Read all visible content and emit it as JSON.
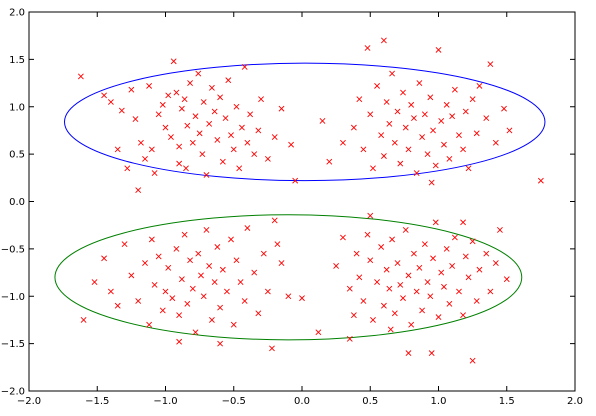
{
  "chart_data": {
    "type": "scatter",
    "title": "",
    "xlabel": "",
    "ylabel": "",
    "xlim": [
      -2.0,
      2.0
    ],
    "ylim": [
      -2.0,
      2.0
    ],
    "grid": false,
    "legend": "none",
    "x_ticks": [
      "−2.0",
      "−1.5",
      "−1.0",
      "−0.5",
      "0.0",
      "0.5",
      "1.0",
      "1.5",
      "2.0"
    ],
    "y_ticks": [
      "2.0",
      "1.5",
      "1.0",
      "0.5",
      "0.0",
      "−0.5",
      "−1.0",
      "−1.5",
      "−2.0"
    ],
    "ellipses": [
      {
        "cx": 0.02,
        "cy": 0.84,
        "rx": 1.76,
        "ry": 0.62,
        "color": "#0000ff"
      },
      {
        "cx": -0.1,
        "cy": -0.8,
        "rx": 1.71,
        "ry": 0.66,
        "color": "#008000"
      }
    ],
    "series": [
      {
        "marker": "x",
        "color": "#ff0000",
        "points": [
          [
            -1.62,
            1.32
          ],
          [
            -1.45,
            1.12
          ],
          [
            -1.4,
            1.05
          ],
          [
            -1.32,
            0.96
          ],
          [
            -1.25,
            1.18
          ],
          [
            -1.22,
            0.87
          ],
          [
            -1.18,
            0.62
          ],
          [
            -1.15,
            0.45
          ],
          [
            -1.12,
            1.22
          ],
          [
            -1.1,
            0.55
          ],
          [
            -1.08,
            0.3
          ],
          [
            -1.05,
            0.92
          ],
          [
            -1.02,
            1.02
          ],
          [
            -1.0,
            0.78
          ],
          [
            -0.98,
            1.12
          ],
          [
            -0.96,
            0.68
          ],
          [
            -0.94,
            1.48
          ],
          [
            -0.92,
            1.15
          ],
          [
            -0.9,
            0.58
          ],
          [
            -0.88,
            0.98
          ],
          [
            -0.86,
            1.08
          ],
          [
            -0.85,
            0.35
          ],
          [
            -0.84,
            0.8
          ],
          [
            -0.82,
            1.25
          ],
          [
            -0.8,
            0.62
          ],
          [
            -0.78,
            0.9
          ],
          [
            -0.76,
            1.35
          ],
          [
            -0.75,
            0.72
          ],
          [
            -0.73,
            0.5
          ],
          [
            -0.72,
            1.05
          ],
          [
            -0.7,
            0.28
          ],
          [
            -0.68,
            0.82
          ],
          [
            -0.66,
            1.2
          ],
          [
            -0.64,
            0.95
          ],
          [
            -0.62,
            0.65
          ],
          [
            -0.6,
            1.1
          ],
          [
            -0.58,
            0.42
          ],
          [
            -0.56,
            0.88
          ],
          [
            -0.54,
            1.28
          ],
          [
            -0.52,
            0.7
          ],
          [
            -0.5,
            0.55
          ],
          [
            -0.48,
            1.0
          ],
          [
            -0.46,
            0.35
          ],
          [
            -0.44,
            0.78
          ],
          [
            -0.42,
            1.42
          ],
          [
            -0.4,
            0.62
          ],
          [
            -0.38,
            0.92
          ],
          [
            -0.35,
            0.5
          ],
          [
            -0.32,
            0.75
          ],
          [
            -0.3,
            1.08
          ],
          [
            -0.25,
            0.45
          ],
          [
            -0.2,
            0.68
          ],
          [
            -0.15,
            0.98
          ],
          [
            -0.08,
            0.6
          ],
          [
            -0.05,
            0.22
          ],
          [
            0.15,
            0.85
          ],
          [
            0.2,
            0.42
          ],
          [
            0.3,
            0.62
          ],
          [
            0.38,
            0.78
          ],
          [
            0.42,
            1.08
          ],
          [
            0.45,
            0.55
          ],
          [
            0.48,
            1.62
          ],
          [
            0.5,
            0.92
          ],
          [
            0.52,
            0.35
          ],
          [
            0.55,
            1.22
          ],
          [
            0.58,
            0.7
          ],
          [
            0.6,
            0.48
          ],
          [
            0.62,
            1.05
          ],
          [
            0.64,
            0.82
          ],
          [
            0.66,
            1.35
          ],
          [
            0.68,
            0.62
          ],
          [
            0.7,
            0.95
          ],
          [
            0.72,
            0.4
          ],
          [
            0.74,
            1.15
          ],
          [
            0.76,
            0.78
          ],
          [
            0.78,
            0.55
          ],
          [
            0.8,
            1.02
          ],
          [
            0.82,
            0.88
          ],
          [
            0.84,
            0.3
          ],
          [
            0.86,
            1.25
          ],
          [
            0.88,
            0.68
          ],
          [
            0.9,
            0.92
          ],
          [
            0.92,
            0.5
          ],
          [
            0.94,
            1.1
          ],
          [
            0.96,
            0.75
          ],
          [
            0.98,
            0.38
          ],
          [
            1.0,
            1.6
          ],
          [
            1.02,
            0.85
          ],
          [
            1.04,
            0.6
          ],
          [
            1.06,
            1.02
          ],
          [
            1.08,
            0.45
          ],
          [
            1.1,
            0.9
          ],
          [
            1.12,
            1.18
          ],
          [
            1.15,
            0.7
          ],
          [
            1.18,
            0.55
          ],
          [
            1.2,
            0.95
          ],
          [
            1.22,
            0.35
          ],
          [
            1.25,
            1.08
          ],
          [
            1.28,
            0.72
          ],
          [
            1.3,
            1.22
          ],
          [
            1.35,
            0.88
          ],
          [
            1.38,
            1.45
          ],
          [
            1.42,
            0.62
          ],
          [
            1.48,
            0.98
          ],
          [
            1.52,
            0.75
          ],
          [
            1.75,
            0.22
          ],
          [
            -1.35,
            0.55
          ],
          [
            -1.28,
            0.35
          ],
          [
            -1.2,
            0.12
          ],
          [
            -0.9,
            0.4
          ],
          [
            0.6,
            1.7
          ],
          [
            0.95,
            0.2
          ],
          [
            -1.6,
            -1.25
          ],
          [
            -1.52,
            -0.85
          ],
          [
            -1.45,
            -0.6
          ],
          [
            -1.4,
            -0.95
          ],
          [
            -1.35,
            -1.1
          ],
          [
            -1.3,
            -0.45
          ],
          [
            -1.25,
            -0.78
          ],
          [
            -1.2,
            -1.05
          ],
          [
            -1.15,
            -0.65
          ],
          [
            -1.12,
            -1.3
          ],
          [
            -1.1,
            -0.4
          ],
          [
            -1.08,
            -0.88
          ],
          [
            -1.05,
            -0.58
          ],
          [
            -1.02,
            -1.15
          ],
          [
            -1.0,
            -0.95
          ],
          [
            -0.98,
            -0.7
          ],
          [
            -0.95,
            -1.02
          ],
          [
            -0.92,
            -0.5
          ],
          [
            -0.9,
            -1.2
          ],
          [
            -0.88,
            -0.82
          ],
          [
            -0.86,
            -0.35
          ],
          [
            -0.84,
            -1.08
          ],
          [
            -0.82,
            -0.62
          ],
          [
            -0.8,
            -0.92
          ],
          [
            -0.78,
            -1.38
          ],
          [
            -0.76,
            -0.55
          ],
          [
            -0.74,
            -0.78
          ],
          [
            -0.72,
            -1.0
          ],
          [
            -0.7,
            -0.3
          ],
          [
            -0.68,
            -0.68
          ],
          [
            -0.66,
            -1.25
          ],
          [
            -0.64,
            -0.85
          ],
          [
            -0.62,
            -0.48
          ],
          [
            -0.6,
            -1.12
          ],
          [
            -0.58,
            -0.72
          ],
          [
            -0.55,
            -0.95
          ],
          [
            -0.52,
            -0.4
          ],
          [
            -0.5,
            -1.3
          ],
          [
            -0.48,
            -0.62
          ],
          [
            -0.45,
            -0.85
          ],
          [
            -0.42,
            -1.05
          ],
          [
            -0.4,
            -0.28
          ],
          [
            -0.35,
            -0.75
          ],
          [
            -0.32,
            -1.18
          ],
          [
            -0.28,
            -0.55
          ],
          [
            -0.25,
            -0.95
          ],
          [
            -0.22,
            -1.55
          ],
          [
            -0.2,
            -0.2
          ],
          [
            -0.18,
            -0.45
          ],
          [
            -0.15,
            -0.65
          ],
          [
            -0.1,
            -1.0
          ],
          [
            0.0,
            -1.02
          ],
          [
            0.12,
            -1.38
          ],
          [
            0.25,
            -0.68
          ],
          [
            0.3,
            -0.38
          ],
          [
            0.35,
            -0.92
          ],
          [
            0.38,
            -1.2
          ],
          [
            0.4,
            -0.55
          ],
          [
            0.42,
            -0.8
          ],
          [
            0.45,
            -1.05
          ],
          [
            0.48,
            -0.35
          ],
          [
            0.5,
            -0.62
          ],
          [
            0.52,
            -1.25
          ],
          [
            0.55,
            -0.85
          ],
          [
            0.58,
            -0.48
          ],
          [
            0.6,
            -1.1
          ],
          [
            0.62,
            -0.72
          ],
          [
            0.64,
            -0.92
          ],
          [
            0.66,
            -0.4
          ],
          [
            0.68,
            -1.18
          ],
          [
            0.7,
            -0.65
          ],
          [
            0.72,
            -0.88
          ],
          [
            0.74,
            -1.02
          ],
          [
            0.76,
            -0.3
          ],
          [
            0.78,
            -0.78
          ],
          [
            0.8,
            -1.3
          ],
          [
            0.82,
            -0.55
          ],
          [
            0.84,
            -0.95
          ],
          [
            0.86,
            -0.7
          ],
          [
            0.88,
            -1.15
          ],
          [
            0.9,
            -0.45
          ],
          [
            0.92,
            -0.85
          ],
          [
            0.94,
            -1.0
          ],
          [
            0.96,
            -0.6
          ],
          [
            0.98,
            -0.22
          ],
          [
            1.0,
            -1.22
          ],
          [
            1.02,
            -0.75
          ],
          [
            1.04,
            -0.9
          ],
          [
            1.06,
            -0.5
          ],
          [
            1.08,
            -1.08
          ],
          [
            1.1,
            -0.68
          ],
          [
            1.12,
            -0.38
          ],
          [
            1.15,
            -0.95
          ],
          [
            1.18,
            -1.2
          ],
          [
            1.2,
            -0.58
          ],
          [
            1.22,
            -0.8
          ],
          [
            1.25,
            -0.42
          ],
          [
            1.28,
            -1.05
          ],
          [
            1.3,
            -0.72
          ],
          [
            1.35,
            -0.55
          ],
          [
            1.38,
            -0.95
          ],
          [
            1.42,
            -0.65
          ],
          [
            1.45,
            -0.3
          ],
          [
            1.5,
            -0.82
          ],
          [
            -0.9,
            -1.48
          ],
          [
            -0.6,
            -1.5
          ],
          [
            0.35,
            -1.45
          ],
          [
            0.65,
            -1.35
          ],
          [
            0.78,
            -1.6
          ],
          [
            0.95,
            -1.6
          ],
          [
            1.25,
            -1.68
          ],
          [
            1.18,
            -0.22
          ],
          [
            0.5,
            -0.15
          ]
        ]
      }
    ]
  }
}
